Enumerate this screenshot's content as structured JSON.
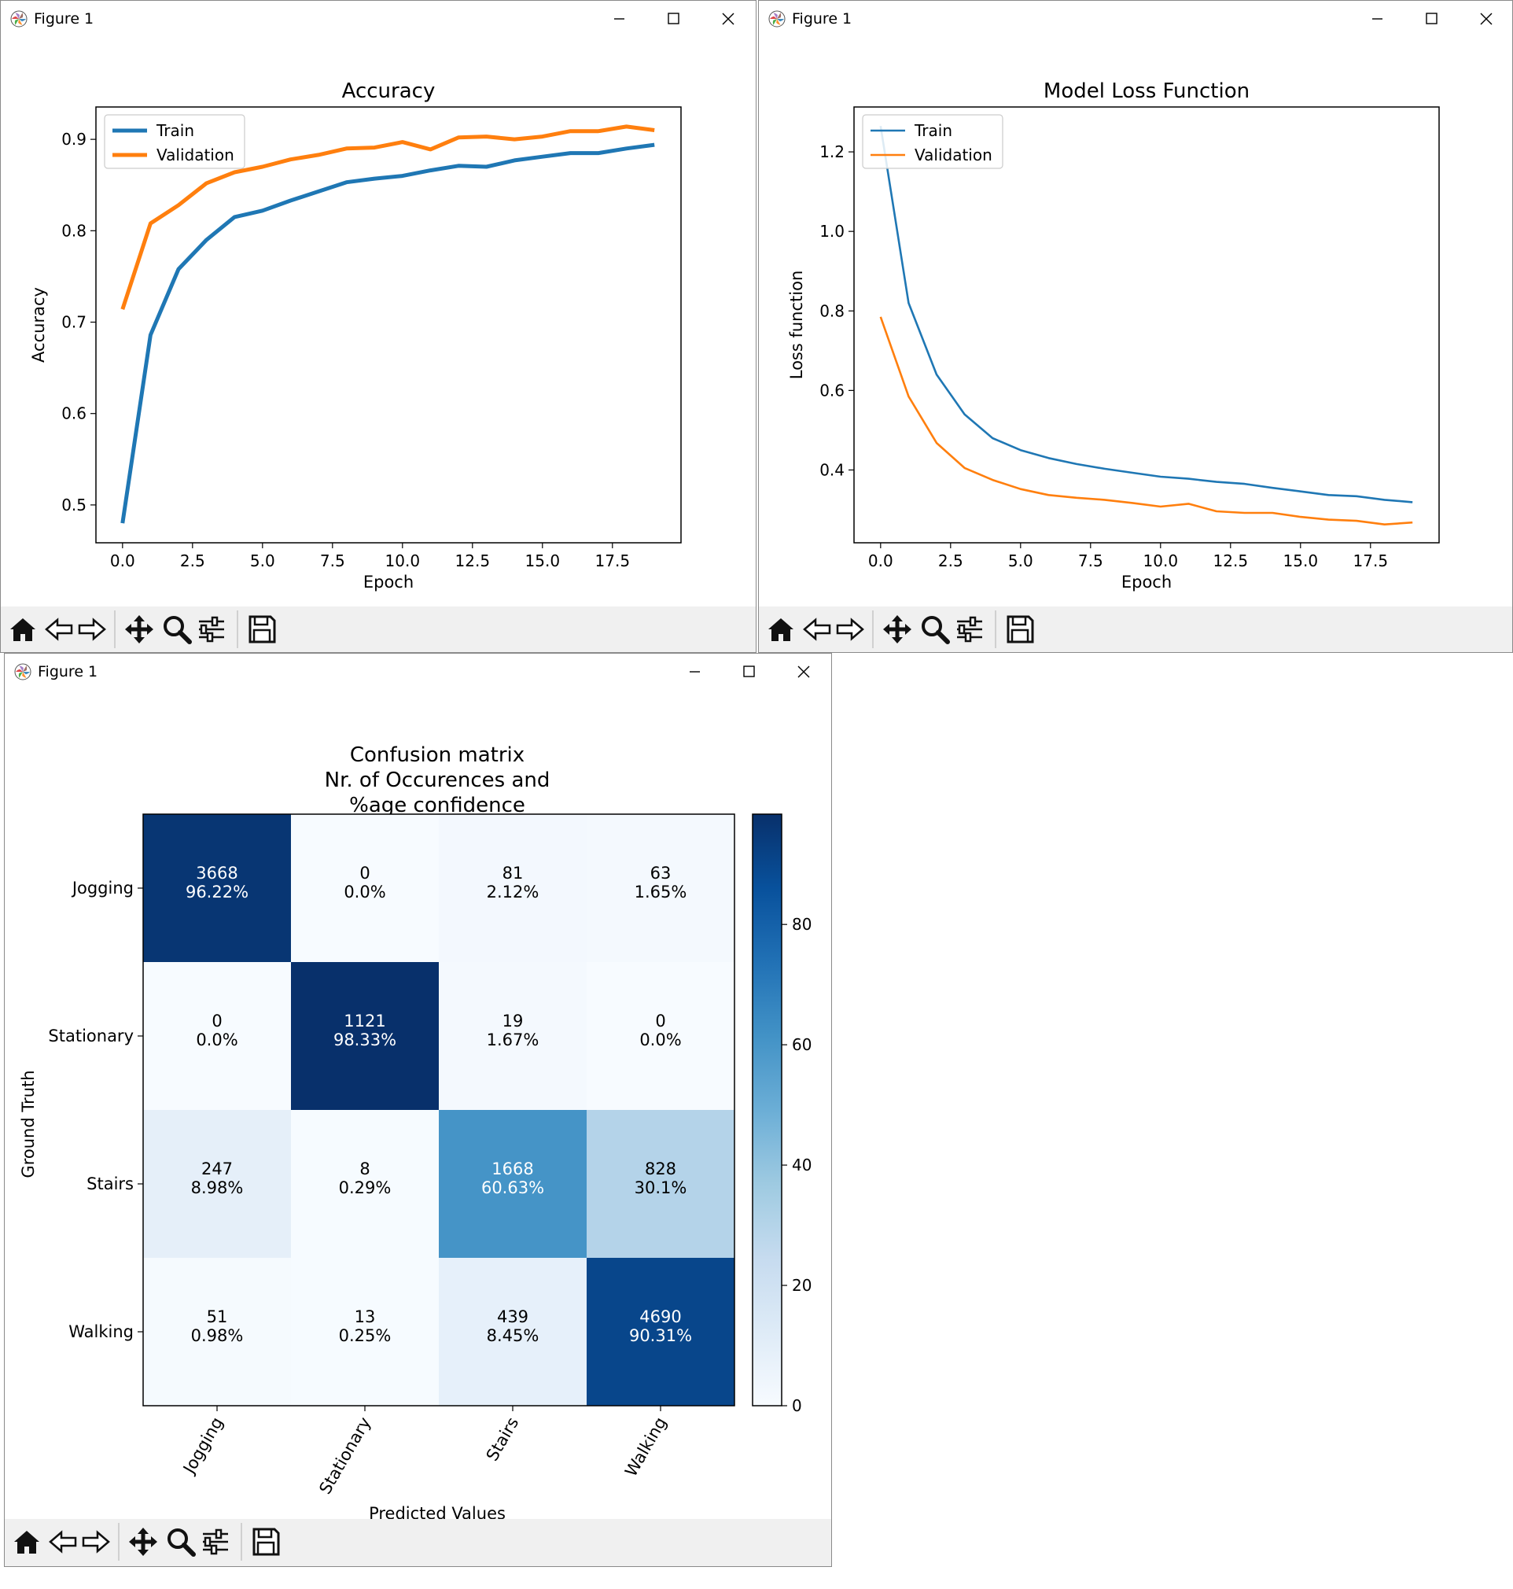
{
  "windows": [
    {
      "title": "Figure 1"
    },
    {
      "title": "Figure 1"
    },
    {
      "title": "Figure 1"
    }
  ],
  "toolbar_icons": [
    "home-icon",
    "back-arrow-icon",
    "forward-arrow-icon",
    "pan-icon",
    "zoom-icon",
    "configure-subplots-icon",
    "save-icon"
  ],
  "colors": {
    "train": "#1f77b4",
    "validation": "#ff7f0e"
  },
  "chart_data": [
    {
      "type": "line",
      "title": "Accuracy",
      "xlabel": "Epoch",
      "ylabel": "Accuracy",
      "x": [
        0,
        1,
        2,
        3,
        4,
        5,
        6,
        7,
        8,
        9,
        10,
        11,
        12,
        13,
        14,
        15,
        16,
        17,
        18,
        19
      ],
      "series": [
        {
          "name": "Train",
          "values": [
            0.48,
            0.686,
            0.758,
            0.79,
            0.815,
            0.822,
            0.833,
            0.843,
            0.853,
            0.857,
            0.86,
            0.866,
            0.871,
            0.87,
            0.877,
            0.881,
            0.885,
            0.885,
            0.89,
            0.894
          ]
        },
        {
          "name": "Validation",
          "values": [
            0.714,
            0.808,
            0.828,
            0.852,
            0.864,
            0.87,
            0.878,
            0.883,
            0.89,
            0.891,
            0.897,
            0.889,
            0.902,
            0.903,
            0.9,
            0.903,
            0.909,
            0.909,
            0.914,
            0.91
          ]
        }
      ],
      "xlim": [
        -0.95,
        19.95
      ],
      "ylim": [
        0.4586,
        0.9354
      ],
      "xticks": [
        "0.0",
        "2.5",
        "5.0",
        "7.5",
        "10.0",
        "12.5",
        "15.0",
        "17.5"
      ],
      "xtick_values": [
        0,
        2.5,
        5,
        7.5,
        10,
        12.5,
        15,
        17.5
      ],
      "yticks": [
        "0.5",
        "0.6",
        "0.7",
        "0.8",
        "0.9"
      ],
      "ytick_values": [
        0.5,
        0.6,
        0.7,
        0.8,
        0.9
      ],
      "legend": "upper-left"
    },
    {
      "type": "line",
      "title": "Model Loss Function",
      "xlabel": "Epoch",
      "ylabel": "Loss function",
      "x": [
        0,
        1,
        2,
        3,
        4,
        5,
        6,
        7,
        8,
        9,
        10,
        11,
        12,
        13,
        14,
        15,
        16,
        17,
        18,
        19
      ],
      "series": [
        {
          "name": "Train",
          "values": [
            1.265,
            0.82,
            0.64,
            0.54,
            0.48,
            0.45,
            0.43,
            0.415,
            0.403,
            0.393,
            0.383,
            0.378,
            0.37,
            0.365,
            0.355,
            0.346,
            0.337,
            0.334,
            0.325,
            0.319
          ]
        },
        {
          "name": "Validation",
          "values": [
            0.785,
            0.585,
            0.468,
            0.405,
            0.375,
            0.352,
            0.337,
            0.33,
            0.325,
            0.317,
            0.308,
            0.315,
            0.296,
            0.292,
            0.292,
            0.282,
            0.275,
            0.272,
            0.263,
            0.268
          ]
        }
      ],
      "xlim": [
        -0.95,
        19.95
      ],
      "ylim": [
        0.2169,
        1.3129
      ],
      "xticks": [
        "0.0",
        "2.5",
        "5.0",
        "7.5",
        "10.0",
        "12.5",
        "15.0",
        "17.5"
      ],
      "xtick_values": [
        0,
        2.5,
        5,
        7.5,
        10,
        12.5,
        15,
        17.5
      ],
      "yticks": [
        "0.4",
        "0.6",
        "0.8",
        "1.0",
        "1.2"
      ],
      "ytick_values": [
        0.4,
        0.6,
        0.8,
        1.0,
        1.2
      ],
      "legend": "upper-left"
    },
    {
      "type": "heatmap",
      "title_lines": [
        "Confusion matrix",
        "Nr. of Occurences and",
        "%age confidence"
      ],
      "xlabel": "Predicted Values",
      "ylabel": "Ground Truth",
      "row_labels": [
        "Jogging",
        "Stationary",
        "Stairs",
        "Walking"
      ],
      "col_labels": [
        "Jogging",
        "Stationary",
        "Stairs",
        "Walking"
      ],
      "cells": [
        [
          {
            "count": "3668",
            "pct": "96.22%",
            "value": 96.22
          },
          {
            "count": "0",
            "pct": "0.0%",
            "value": 0
          },
          {
            "count": "81",
            "pct": "2.12%",
            "value": 2.12
          },
          {
            "count": "63",
            "pct": "1.65%",
            "value": 1.65
          }
        ],
        [
          {
            "count": "0",
            "pct": "0.0%",
            "value": 0
          },
          {
            "count": "1121",
            "pct": "98.33%",
            "value": 98.33
          },
          {
            "count": "19",
            "pct": "1.67%",
            "value": 1.67
          },
          {
            "count": "0",
            "pct": "0.0%",
            "value": 0
          }
        ],
        [
          {
            "count": "247",
            "pct": "8.98%",
            "value": 8.98
          },
          {
            "count": "8",
            "pct": "0.29%",
            "value": 0.29
          },
          {
            "count": "1668",
            "pct": "60.63%",
            "value": 60.63
          },
          {
            "count": "828",
            "pct": "30.1%",
            "value": 30.1
          }
        ],
        [
          {
            "count": "51",
            "pct": "0.98%",
            "value": 0.98
          },
          {
            "count": "13",
            "pct": "0.25%",
            "value": 0.25
          },
          {
            "count": "439",
            "pct": "8.45%",
            "value": 8.45
          },
          {
            "count": "4690",
            "pct": "90.31%",
            "value": 90.31
          }
        ]
      ],
      "colorbar_ticks": [
        "0",
        "20",
        "40",
        "60",
        "80"
      ],
      "colorbar_tick_values": [
        0,
        20,
        40,
        60,
        80
      ],
      "vmin": 0,
      "vmax": 98.33,
      "colormap": "Blues"
    }
  ]
}
